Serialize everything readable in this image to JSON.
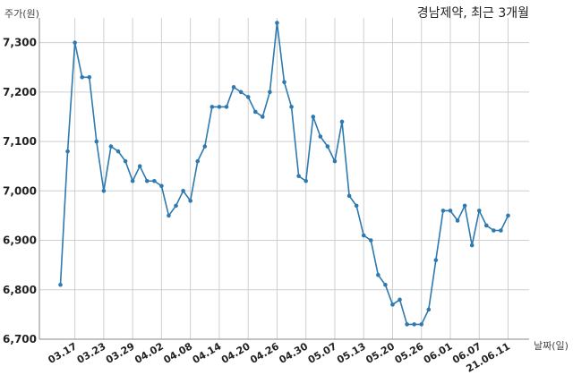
{
  "chart_data": {
    "type": "line",
    "title": "경남제약, 최근 3개월",
    "ylabel": "주가(원)",
    "xlabel": "날짜(일)",
    "ylim": [
      6700,
      7350
    ],
    "yticks": [
      6700,
      6800,
      6900,
      7000,
      7100,
      7200,
      7300
    ],
    "ytick_labels": [
      "6,700",
      "6,800",
      "6,900",
      "7,000",
      "7,100",
      "7,200",
      "7,300"
    ],
    "xtick_labels": [
      "03.17",
      "03.23",
      "03.29",
      "04.02",
      "04.08",
      "04.14",
      "04.20",
      "04.26",
      "04.30",
      "05.07",
      "05.13",
      "05.20",
      "05.26",
      "06.01",
      "06.07",
      "21.06.11"
    ],
    "xtick_positions": [
      2,
      6,
      10,
      14,
      18,
      22,
      26,
      30,
      34,
      38,
      42,
      46,
      50,
      54,
      58,
      62
    ],
    "grid": true,
    "colors": {
      "line": "#2e7ab0"
    },
    "series": [
      {
        "values": [
          6810,
          7080,
          7300,
          7230,
          7230,
          7100,
          7000,
          7090,
          7080,
          7060,
          7020,
          7050,
          7020,
          7020,
          7010,
          6950,
          6970,
          7000,
          6980,
          7060,
          7090,
          7170,
          7170,
          7170,
          7210,
          7200,
          7190,
          7160,
          7150,
          7200,
          7340,
          7220,
          7170,
          7030,
          7020,
          7150,
          7110,
          7090,
          7060,
          7140,
          6990,
          6970,
          6910,
          6900,
          6830,
          6810,
          6770,
          6780,
          6730,
          6730,
          6730,
          6760,
          6860,
          6960,
          6960,
          6940,
          6970,
          6890,
          6960,
          6930,
          6920,
          6920,
          6950
        ]
      }
    ]
  }
}
